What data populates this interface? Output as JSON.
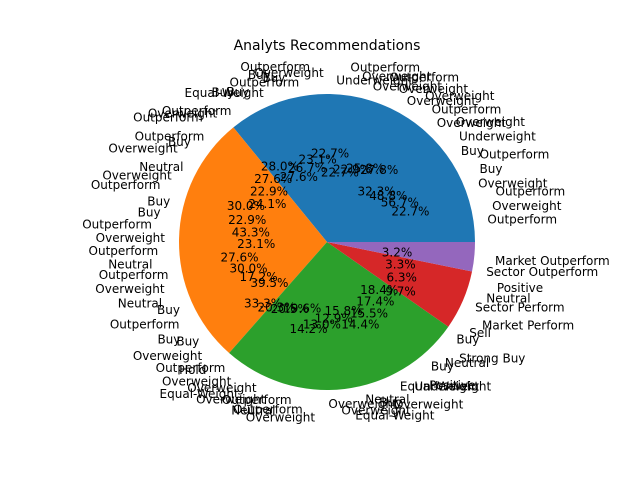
{
  "chart_data": {
    "type": "pie",
    "title": "Analyts Recommendations",
    "slices": [
      {
        "name": "Overweight",
        "value": 35.9,
        "color": "#1f77b4"
      },
      {
        "name": "Outperform",
        "value": 27.6,
        "color": "#ff7f0e"
      },
      {
        "name": "Buy",
        "value": 26.8,
        "color": "#2ca02c"
      },
      {
        "name": "Neutral",
        "value": 6.5,
        "color": "#d62728"
      },
      {
        "name": "Sector Outperform",
        "value": 3.2,
        "color": "#9467bd"
      }
    ],
    "outer_labels": [
      "Outperform",
      "Overweight",
      "Outperform",
      "Overweight",
      "Buy",
      "Outperform",
      "Buy",
      "Underweight",
      "Overweight",
      "Overweight",
      "Outperform",
      "Overweight",
      "Overweight",
      "Overweight",
      "Outperform",
      "Overweight",
      "Overweight",
      "Outperform",
      "Underweight",
      "Overweight",
      "Outperform",
      "Outperform",
      "Buy",
      "Buy",
      "Equal-Weight",
      "Buy",
      "Buy",
      "Outperform",
      "Overweight",
      "Outperform",
      "Outperform",
      "Buy",
      "Overweight",
      "Neutral",
      "Overweight",
      "Outperform",
      "Buy",
      "Buy",
      "Outperform",
      "Overweight",
      "Outperform",
      "Neutral",
      "Outperform",
      "Overweight",
      "Neutral",
      "Buy",
      "Outperform",
      "Buy",
      "Buy",
      "Overweight",
      "Hold",
      "Outperform",
      "Overweight",
      "Equal-Weight",
      "Overweight",
      "Overweight",
      "Neutral",
      "Outperform",
      "Outperform",
      "Overweight",
      "Overweight",
      "Overweight",
      "Equal-Weight",
      "Neutral",
      "Buy",
      "Overweight",
      "Equal-Weight",
      "Underweight",
      "Positive",
      "Buy",
      "Neutral",
      "Strong Buy",
      "Buy",
      "Sell",
      "Market Perform",
      "Sector Perform",
      "Neutral",
      "Positive",
      "Sector Outperform",
      "Market Outperform"
    ],
    "inner_labels": [
      "22.7%",
      "56.7%",
      "48.8%",
      "32.3%",
      "27.8%",
      "25.8%",
      "22.9%",
      "22.7%",
      "22.7%",
      "23.1%",
      "26.7%",
      "27.6%",
      "28.0%",
      "27.6%",
      "22.9%",
      "24.1%",
      "30.0%",
      "22.9%",
      "43.3%",
      "23.1%",
      "27.6%",
      "30.0%",
      "17.2%",
      "39.5%",
      "33.3%",
      "20.3%",
      "20.5%",
      "19.6%",
      "14.2%",
      "13.0%",
      "12.9%",
      "15.8%",
      "14.4%",
      "15.5%",
      "17.4%",
      "18.4%",
      "9.7%",
      "6.3%",
      "3.3%",
      "3.2%"
    ]
  }
}
